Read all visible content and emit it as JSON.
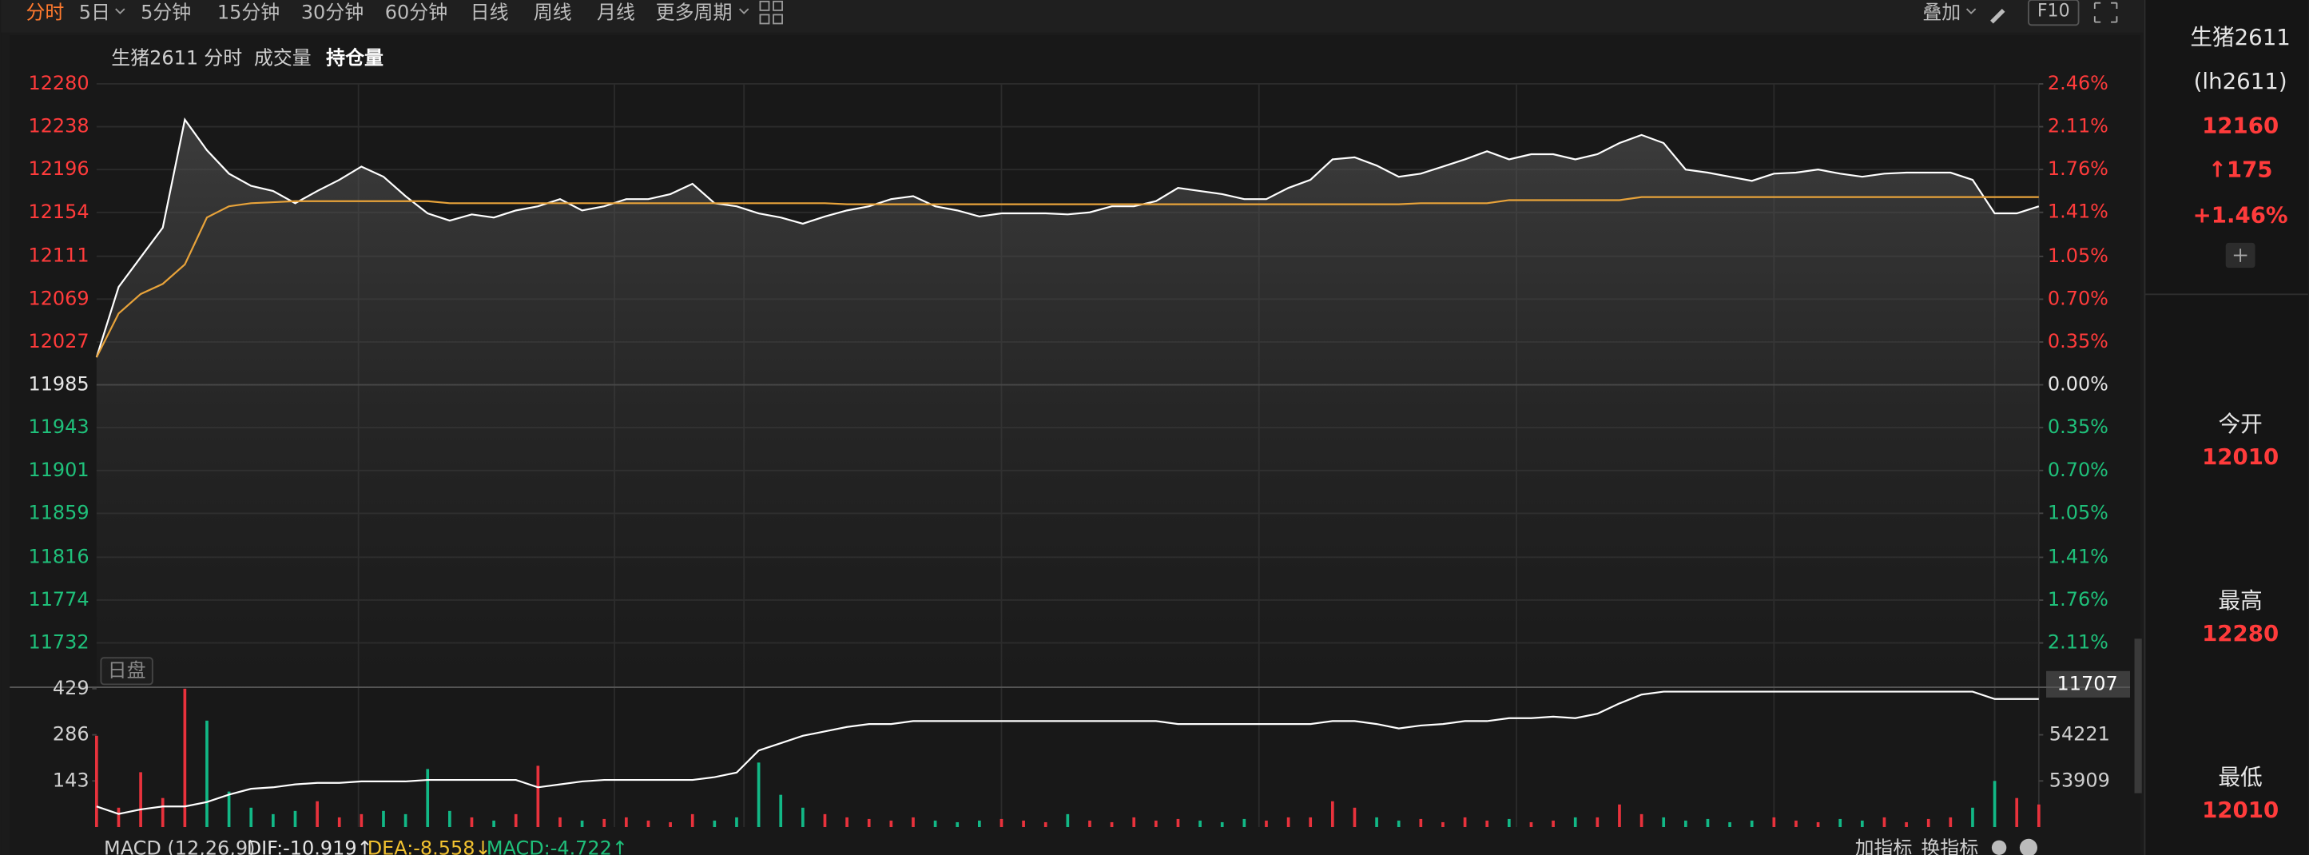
{
  "toolbar": {
    "tabs": [
      "分时",
      "5日",
      "5分钟",
      "15分钟",
      "30分钟",
      "60分钟",
      "日线",
      "周线",
      "月线",
      "更多周期"
    ],
    "right": [
      "叠加",
      "F10"
    ]
  },
  "chart_data": [
    {
      "type": "line",
      "title": "生猪2611",
      "ylim": [
        11690,
        12280
      ],
      "yticks": [
        12280,
        12238,
        12196,
        12154,
        12111,
        12069,
        12027,
        11985,
        11943,
        11901,
        11859,
        11816,
        11774,
        11732
      ],
      "y2lim": [
        -2.46,
        2.46
      ],
      "y2ticks": [
        {
          "value": 2.46,
          "label": "2.46%"
        },
        {
          "value": 2.11,
          "label": "2.11%"
        },
        {
          "value": 1.76,
          "label": "1.76%"
        },
        {
          "value": 1.41,
          "label": "1.41%"
        },
        {
          "value": 1.05,
          "label": "1.05%"
        },
        {
          "value": 0.7,
          "label": "0.70%"
        },
        {
          "value": 0.35,
          "label": "0.35%"
        },
        {
          "value": 0,
          "label": "0.00%"
        },
        {
          "value": -0.35,
          "label": "0.35%"
        },
        {
          "value": -0.7,
          "label": "0.70%"
        },
        {
          "value": -1.05,
          "label": "1.05%"
        },
        {
          "value": -1.41,
          "label": "1.41%"
        },
        {
          "value": -1.76,
          "label": "1.76%"
        },
        {
          "value": -2.11,
          "label": "2.11%"
        }
      ],
      "grid": true,
      "session_label": "日盘",
      "price_box": "11707",
      "series": [
        {
          "name": "分时",
          "color": "#ffffff",
          "values": [
            12012,
            12081,
            12110,
            12139,
            12245,
            12215,
            12192,
            12180,
            12175,
            12163,
            12175,
            12186,
            12199,
            12189,
            12170,
            12153,
            12146,
            12152,
            12149,
            12156,
            12160,
            12167,
            12156,
            12160,
            12167,
            12167,
            12172,
            12182,
            12163,
            12160,
            12153,
            12149,
            12143,
            12150,
            12156,
            12160,
            12167,
            12170,
            12160,
            12156,
            12150,
            12153,
            12153,
            12153,
            12152,
            12154,
            12160,
            12160,
            12165,
            12178,
            12175,
            12172,
            12167,
            12167,
            12178,
            12186,
            12206,
            12208,
            12200,
            12189,
            12192,
            12199,
            12206,
            12214,
            12206,
            12211,
            12211,
            12206,
            12211,
            12222,
            12230,
            12222,
            12196,
            12193,
            12189,
            12185,
            12192,
            12193,
            12196,
            12192,
            12189,
            12192,
            12193,
            12193,
            12193,
            12186,
            12153,
            12153,
            12160
          ]
        },
        {
          "color": "#e8a33a",
          "values": [
            12012,
            12055,
            12074,
            12084,
            12103,
            12149,
            12160,
            12163,
            12164,
            12165,
            12165,
            12165,
            12165,
            12165,
            12165,
            12165,
            12163,
            12163,
            12163,
            12163,
            12163,
            12163,
            12163,
            12163,
            12163,
            12163,
            12163,
            12163,
            12163,
            12163,
            12163,
            12163,
            12163,
            12163,
            12162,
            12162,
            12162,
            12162,
            12162,
            12162,
            12162,
            12162,
            12162,
            12162,
            12162,
            12162,
            12162,
            12162,
            12162,
            12162,
            12162,
            12162,
            12162,
            12162,
            12162,
            12162,
            12162,
            12162,
            12162,
            12162,
            12163,
            12163,
            12163,
            12163,
            12166,
            12166,
            12166,
            12166,
            12166,
            12166,
            12169,
            12169,
            12169,
            12169,
            12169,
            12169,
            12169,
            12169,
            12169,
            12169,
            12169,
            12169,
            12169,
            12169,
            12169,
            12169,
            12169,
            12169,
            12169
          ]
        }
      ]
    },
    {
      "type": "bar",
      "ylim": [
        0,
        429
      ],
      "yticks": [
        429,
        286,
        143
      ],
      "y2lim": [
        53597,
        54533
      ],
      "y2ticks": [
        54221,
        53909
      ],
      "up_color": "#e8323c",
      "down_color": "#12b886",
      "series": [
        {
          "name": "成交量",
          "values": [
            283,
            60,
            170,
            90,
            429,
            330,
            110,
            60,
            40,
            50,
            80,
            30,
            40,
            50,
            40,
            180,
            50,
            30,
            20,
            40,
            190,
            30,
            20,
            25,
            30,
            20,
            15,
            40,
            20,
            30,
            200,
            100,
            60,
            40,
            30,
            25,
            20,
            30,
            20,
            15,
            20,
            25,
            20,
            15,
            40,
            20,
            15,
            30,
            20,
            25,
            20,
            15,
            25,
            20,
            30,
            30,
            80,
            60,
            30,
            20,
            25,
            15,
            30,
            20,
            25,
            15,
            20,
            30,
            30,
            70,
            40,
            30,
            20,
            25,
            15,
            20,
            30,
            20,
            15,
            25,
            20,
            30,
            15,
            25,
            30,
            60,
            143,
            90,
            70
          ]
        },
        {
          "name": "持仓量",
          "axis": "y2",
          "color": "#ffffff",
          "values": [
            53736,
            53686,
            53716,
            53736,
            53736,
            53766,
            53816,
            53856,
            53866,
            53886,
            53896,
            53896,
            53906,
            53906,
            53906,
            53916,
            53916,
            53916,
            53916,
            53916,
            53866,
            53886,
            53906,
            53916,
            53916,
            53916,
            53916,
            53916,
            53935,
            53965,
            54115,
            54165,
            54214,
            54244,
            54274,
            54294,
            54294,
            54314,
            54314,
            54314,
            54314,
            54314,
            54314,
            54314,
            54314,
            54314,
            54314,
            54314,
            54314,
            54294,
            54294,
            54294,
            54294,
            54294,
            54294,
            54294,
            54314,
            54314,
            54294,
            54264,
            54284,
            54294,
            54314,
            54314,
            54334,
            54334,
            54344,
            54334,
            54364,
            54433,
            54493,
            54513,
            54513,
            54513,
            54513,
            54513,
            54513,
            54513,
            54513,
            54513,
            54513,
            54513,
            54513,
            54513,
            54513,
            54513,
            54463,
            54463,
            54463
          ]
        }
      ]
    }
  ],
  "indicator": {
    "name": "MACD (12,26,9)",
    "dif": "DIF:-10.919↑",
    "dea": "DEA:-8.558↓",
    "macd": "MACD:-4.722↑",
    "buttons": [
      "加指标",
      "换指标"
    ]
  },
  "sidebar": {
    "name": "生猪2611",
    "code": "(lh2611)",
    "last": "12160",
    "change": "↑175",
    "percent": "+1.46%",
    "quotes": [
      {
        "label": "今开",
        "value": "12010"
      },
      {
        "label": "最高",
        "value": "12280"
      },
      {
        "label": "最低",
        "value": "12010"
      }
    ]
  }
}
